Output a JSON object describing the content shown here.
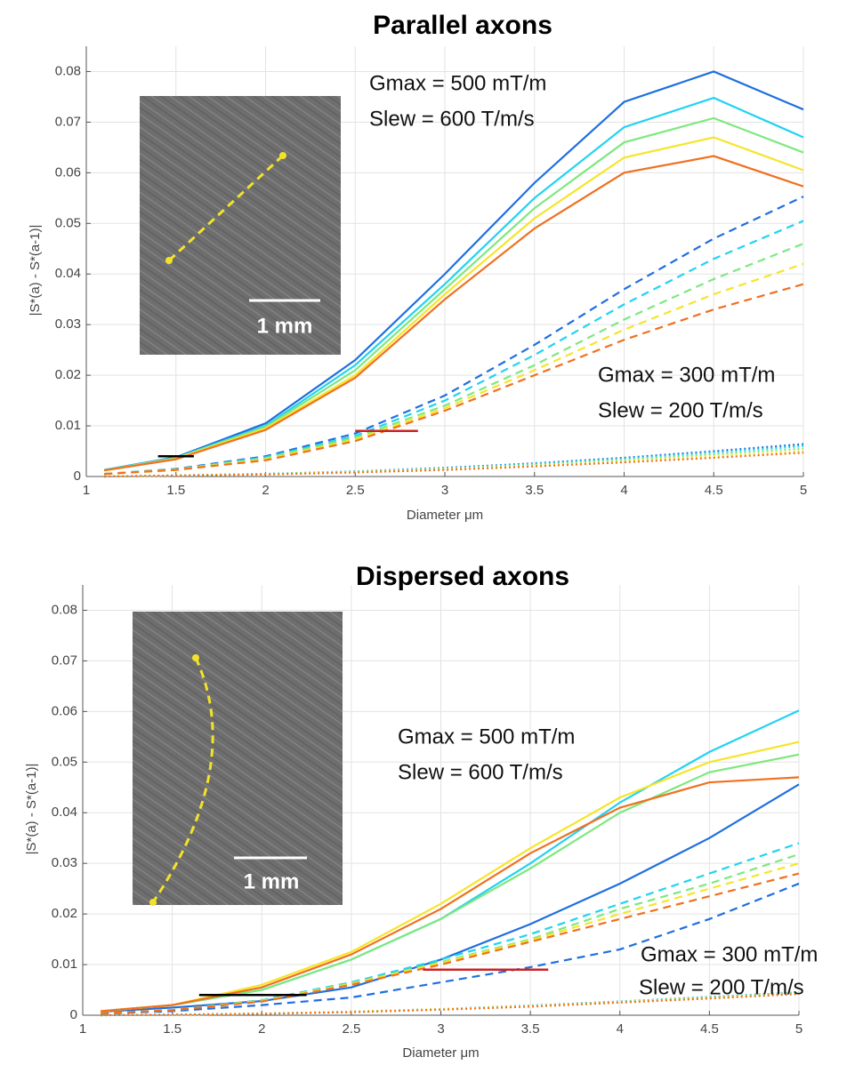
{
  "chart_data": [
    {
      "type": "line",
      "title": "Parallel axons",
      "xlabel": "Diameter μm",
      "ylabel": "|S*(a) - S*(a-1)|",
      "x": [
        1.1,
        1.5,
        2,
        2.5,
        3,
        3.5,
        4,
        4.5,
        5
      ],
      "xlim": [
        1,
        5
      ],
      "ylim": [
        0,
        0.085
      ],
      "xticks": [
        1,
        1.5,
        2,
        2.5,
        3,
        3.5,
        4,
        4.5,
        5
      ],
      "yticks": [
        0,
        0.01,
        0.02,
        0.03,
        0.04,
        0.05,
        0.06,
        0.07,
        0.08
      ],
      "grid": true,
      "series": [
        {
          "color": "#1f6fe0",
          "line_style": "solid",
          "values": [
            0.0013,
            0.0038,
            0.0105,
            0.023,
            0.04,
            0.058,
            0.074,
            0.08,
            0.0725
          ]
        },
        {
          "color": "#22d3f0",
          "line_style": "solid",
          "values": [
            0.0013,
            0.0037,
            0.01,
            0.022,
            0.038,
            0.055,
            0.069,
            0.0748,
            0.067
          ]
        },
        {
          "color": "#7ee87e",
          "line_style": "solid",
          "values": [
            0.0012,
            0.0036,
            0.0098,
            0.021,
            0.037,
            0.053,
            0.066,
            0.0708,
            0.064
          ]
        },
        {
          "color": "#f5e52a",
          "line_style": "solid",
          "values": [
            0.0012,
            0.0035,
            0.0095,
            0.02,
            0.036,
            0.051,
            0.063,
            0.067,
            0.0605
          ]
        },
        {
          "color": "#f07020",
          "line_style": "solid",
          "values": [
            0.0012,
            0.0034,
            0.0092,
            0.0195,
            0.035,
            0.049,
            0.06,
            0.0633,
            0.0573
          ]
        },
        {
          "color": "#1f6fe0",
          "line_style": "dashed",
          "values": [
            0.0005,
            0.0015,
            0.004,
            0.0085,
            0.016,
            0.026,
            0.037,
            0.047,
            0.0553
          ]
        },
        {
          "color": "#22d3f0",
          "line_style": "dashed",
          "values": [
            0.0005,
            0.0014,
            0.0038,
            0.008,
            0.015,
            0.024,
            0.034,
            0.043,
            0.0505
          ]
        },
        {
          "color": "#7ee87e",
          "line_style": "dashed",
          "values": [
            0.0005,
            0.0014,
            0.0036,
            0.0077,
            0.014,
            0.022,
            0.031,
            0.039,
            0.046
          ]
        },
        {
          "color": "#f5e52a",
          "line_style": "dashed",
          "values": [
            0.0005,
            0.0013,
            0.0034,
            0.0073,
            0.0135,
            0.021,
            0.029,
            0.036,
            0.042
          ]
        },
        {
          "color": "#f07020",
          "line_style": "dashed",
          "values": [
            0.0005,
            0.0013,
            0.0032,
            0.007,
            0.013,
            0.02,
            0.027,
            0.033,
            0.038
          ]
        },
        {
          "color": "#1f6fe0",
          "line_style": "dotted",
          "values": [
            0,
            0.0002,
            0.0005,
            0.001,
            0.0017,
            0.0026,
            0.0037,
            0.005,
            0.0064
          ]
        },
        {
          "color": "#22d3f0",
          "line_style": "dotted",
          "values": [
            0,
            0.0002,
            0.0005,
            0.001,
            0.0016,
            0.0025,
            0.0035,
            0.0047,
            0.006
          ]
        },
        {
          "color": "#7ee87e",
          "line_style": "dotted",
          "values": [
            0,
            0.0002,
            0.0005,
            0.0009,
            0.0015,
            0.0023,
            0.0033,
            0.0044,
            0.0055
          ]
        },
        {
          "color": "#f5e52a",
          "line_style": "dotted",
          "values": [
            0,
            0.0002,
            0.0004,
            0.0009,
            0.0014,
            0.0021,
            0.003,
            0.004,
            0.005
          ]
        },
        {
          "color": "#f07020",
          "line_style": "dotted",
          "values": [
            0,
            0.0002,
            0.0004,
            0.0008,
            0.0013,
            0.002,
            0.0028,
            0.0037,
            0.0047
          ]
        }
      ],
      "reference_lines": [
        {
          "x": [
            1.4,
            1.6
          ],
          "y": 0.004,
          "color": "#000000"
        },
        {
          "x": [
            2.5,
            2.85
          ],
          "y": 0.009,
          "color": "#cc2222"
        }
      ],
      "annotations": [
        "Gmax = 500 mT/m",
        "Slew = 600 T/m/s",
        "Gmax = 300 mT/m",
        "Slew = 200 T/m/s"
      ],
      "inset": {
        "scale_label": "1 mm"
      }
    },
    {
      "type": "line",
      "title": "Dispersed axons",
      "xlabel": "Diameter μm",
      "ylabel": "|S*(a) - S*(a-1)|",
      "x": [
        1.1,
        1.5,
        2,
        2.5,
        3,
        3.5,
        4,
        4.5,
        5
      ],
      "xlim": [
        1,
        5
      ],
      "ylim": [
        0,
        0.085
      ],
      "xticks": [
        1,
        1.5,
        2,
        2.5,
        3,
        3.5,
        4,
        4.5,
        5
      ],
      "yticks": [
        0,
        0.01,
        0.02,
        0.03,
        0.04,
        0.05,
        0.06,
        0.07,
        0.08
      ],
      "grid": true,
      "series": [
        {
          "color": "#1f6fe0",
          "line_style": "solid",
          "values": [
            0.0007,
            0.0015,
            0.0028,
            0.0055,
            0.011,
            0.018,
            0.026,
            0.035,
            0.0456
          ]
        },
        {
          "color": "#22d3f0",
          "line_style": "solid",
          "values": [
            0.0008,
            0.002,
            0.005,
            0.011,
            0.019,
            0.03,
            0.042,
            0.052,
            0.0602
          ]
        },
        {
          "color": "#7ee87e",
          "line_style": "solid",
          "values": [
            0.0008,
            0.002,
            0.005,
            0.011,
            0.019,
            0.029,
            0.04,
            0.048,
            0.0515
          ]
        },
        {
          "color": "#f5e52a",
          "line_style": "solid",
          "values": [
            0.0008,
            0.002,
            0.006,
            0.0125,
            0.022,
            0.033,
            0.043,
            0.05,
            0.054
          ]
        },
        {
          "color": "#f07020",
          "line_style": "solid",
          "values": [
            0.0008,
            0.002,
            0.0055,
            0.012,
            0.021,
            0.032,
            0.041,
            0.046,
            0.047
          ]
        },
        {
          "color": "#1f6fe0",
          "line_style": "dashed",
          "values": [
            0.0003,
            0.0008,
            0.002,
            0.0035,
            0.0065,
            0.0095,
            0.013,
            0.019,
            0.026
          ]
        },
        {
          "color": "#22d3f0",
          "line_style": "dashed",
          "values": [
            0.0004,
            0.001,
            0.003,
            0.0065,
            0.011,
            0.016,
            0.022,
            0.028,
            0.034
          ]
        },
        {
          "color": "#7ee87e",
          "line_style": "dashed",
          "values": [
            0.0004,
            0.001,
            0.0029,
            0.0063,
            0.0105,
            0.015,
            0.021,
            0.026,
            0.0318
          ]
        },
        {
          "color": "#f5e52a",
          "line_style": "dashed",
          "values": [
            0.0004,
            0.001,
            0.0028,
            0.0062,
            0.0103,
            0.0148,
            0.02,
            0.025,
            0.03
          ]
        },
        {
          "color": "#f07020",
          "line_style": "dashed",
          "values": [
            0.0004,
            0.001,
            0.0027,
            0.006,
            0.01,
            0.0145,
            0.019,
            0.0235,
            0.028
          ]
        },
        {
          "color": "#1f6fe0",
          "line_style": "dotted",
          "values": [
            0,
            0.0001,
            0.0003,
            0.0007,
            0.0012,
            0.0019,
            0.0027,
            0.0036,
            0.0045
          ]
        },
        {
          "color": "#22d3f0",
          "line_style": "dotted",
          "values": [
            0,
            0.0001,
            0.0003,
            0.0007,
            0.0012,
            0.0019,
            0.0027,
            0.0036,
            0.0045
          ]
        },
        {
          "color": "#7ee87e",
          "line_style": "dotted",
          "values": [
            0,
            0.0001,
            0.0003,
            0.0007,
            0.0012,
            0.0018,
            0.0026,
            0.0035,
            0.0044
          ]
        },
        {
          "color": "#f5e52a",
          "line_style": "dotted",
          "values": [
            0,
            0.0001,
            0.0003,
            0.0007,
            0.0012,
            0.0018,
            0.0026,
            0.0034,
            0.0043
          ]
        },
        {
          "color": "#f07020",
          "line_style": "dotted",
          "values": [
            0,
            0.0001,
            0.0003,
            0.0006,
            0.0011,
            0.0017,
            0.0025,
            0.0033,
            0.0042
          ]
        }
      ],
      "reference_lines": [
        {
          "x": [
            1.65,
            2.25
          ],
          "y": 0.004,
          "color": "#000000"
        },
        {
          "x": [
            2.9,
            3.6
          ],
          "y": 0.009,
          "color": "#cc2222"
        }
      ],
      "annotations": [
        "Gmax = 500 mT/m",
        "Slew = 600 T/m/s",
        "Gmax = 300 mT/m",
        "Slew = 200 T/m/s"
      ],
      "inset": {
        "scale_label": "1 mm"
      }
    }
  ]
}
